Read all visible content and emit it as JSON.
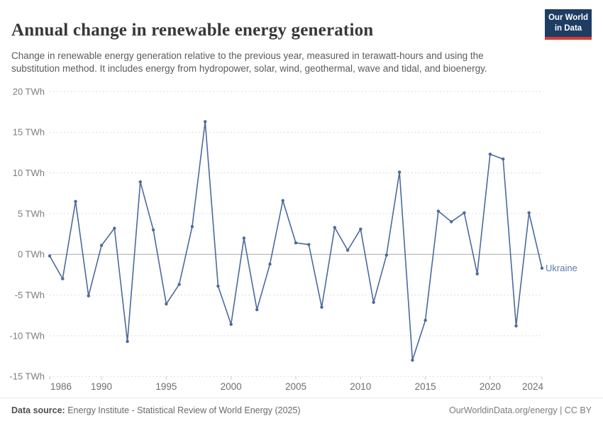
{
  "header": {
    "title": "Annual change in renewable energy generation",
    "subtitle": "Change in renewable energy generation relative to the previous year, measured in terawatt-hours and using the substitution method. It includes energy from hydropower, solar, wind, geothermal, wave and tidal, and bioenergy.",
    "logo": {
      "line1": "Our World",
      "line2": "in Data",
      "bg_color": "#1d3d63",
      "bar_color": "#dc3a30"
    }
  },
  "chart_data": {
    "type": "line",
    "entity": "Ukraine",
    "unit": "TWh",
    "x": [
      1986,
      1987,
      1988,
      1989,
      1990,
      1991,
      1992,
      1993,
      1994,
      1995,
      1996,
      1997,
      1998,
      1999,
      2000,
      2001,
      2002,
      2003,
      2004,
      2005,
      2006,
      2007,
      2008,
      2009,
      2010,
      2011,
      2012,
      2013,
      2014,
      2015,
      2016,
      2017,
      2018,
      2019,
      2020,
      2021,
      2022,
      2023,
      2024
    ],
    "values": [
      -0.2,
      -3.0,
      6.5,
      -5.1,
      1.1,
      3.2,
      -10.7,
      8.9,
      3.0,
      -6.1,
      -3.7,
      3.4,
      16.3,
      -3.9,
      -8.6,
      2.0,
      -6.8,
      -1.2,
      6.6,
      1.4,
      1.2,
      -6.5,
      3.3,
      0.5,
      3.1,
      -5.9,
      -0.1,
      10.1,
      -13.0,
      -8.1,
      5.3,
      4.0,
      5.1,
      -2.4,
      12.3,
      11.7,
      -8.8,
      5.1,
      -1.7
    ],
    "ylim": [
      -15,
      20
    ],
    "ytick_values": [
      20,
      15,
      10,
      5,
      0,
      -5,
      -10,
      -15
    ],
    "xtick_values": [
      1986,
      1990,
      1995,
      2000,
      2005,
      2010,
      2015,
      2020,
      2024
    ],
    "grid": "horizontal-dashed",
    "legend_position": "right-of-line",
    "colors": {
      "line": "#4c6a9c",
      "entity_label": "#577ca9",
      "grid": "#dcdcdc",
      "zero_line": "#a8a8a8",
      "y_tick_label": "#7d7d7d",
      "x_tick_label": "#6e6e6e",
      "tick_mark": "#c8c8c8"
    }
  },
  "footer": {
    "source_label": "Data source:",
    "source_text": " Energy Institute - Statistical Review of World Energy (2025)",
    "right_text": "OurWorldinData.org/energy | CC BY"
  }
}
